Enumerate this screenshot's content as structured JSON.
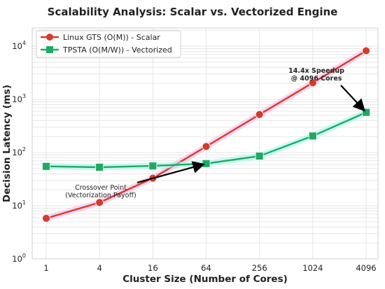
{
  "chart_data": {
    "type": "line",
    "title": "Scalability Analysis: Scalar vs. Vectorized Engine",
    "xlabel": "Cluster Size (Number of Cores)",
    "ylabel": "Decision Latency (ms)",
    "x_scale": "log2",
    "y_scale": "log10",
    "x": [
      1,
      4,
      16,
      64,
      256,
      1024,
      4096
    ],
    "x_tick_labels": [
      "1",
      "4",
      "16",
      "64",
      "256",
      "1024",
      "4096"
    ],
    "y_ticks": [
      {
        "value": 1,
        "base": "10",
        "exp": "0"
      },
      {
        "value": 10,
        "base": "10",
        "exp": "1"
      },
      {
        "value": 100,
        "base": "10",
        "exp": "2"
      },
      {
        "value": 1000,
        "base": "10",
        "exp": "3"
      },
      {
        "value": 10000,
        "base": "10",
        "exp": "4"
      }
    ],
    "ylim": [
      1,
      22000
    ],
    "grid": true,
    "legend_position": "top-left",
    "series": [
      {
        "name": "Linux GTS (O(M)) - Scalar",
        "color": "#d63a2e",
        "marker": "circle",
        "values": [
          5.8,
          11.5,
          33,
          130,
          520,
          2050,
          8200
        ]
      },
      {
        "name": "TPSTA (O(M/W)) - Vectorized",
        "color": "#1faa63",
        "marker": "square",
        "values": [
          55,
          53,
          56,
          62,
          86,
          205,
          570
        ]
      }
    ],
    "annotations": [
      {
        "lines": [
          "Crossover Point",
          "(Vectorization Payoff)"
        ],
        "bold": false,
        "arrow_target": {
          "x": 64,
          "y": 62
        }
      },
      {
        "lines": [
          "14.4x Speedup",
          "@ 4096 Cores"
        ],
        "bold": true,
        "arrow_target": {
          "x": 4096,
          "y": 570
        }
      }
    ]
  }
}
